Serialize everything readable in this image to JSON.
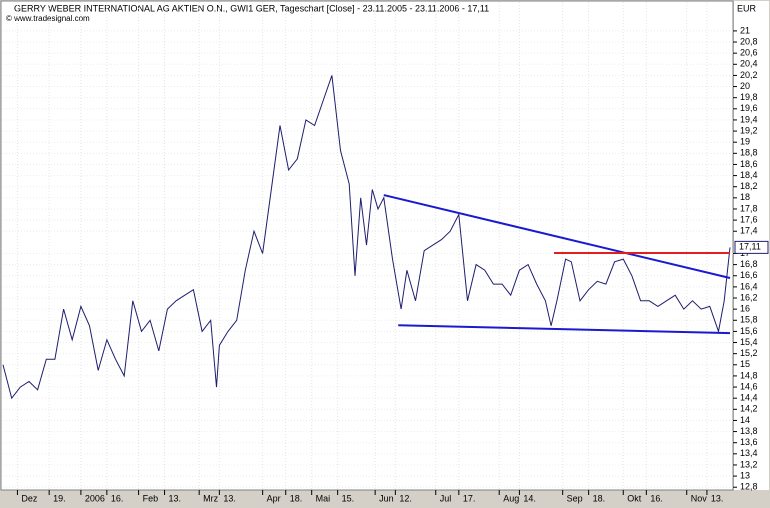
{
  "chart_data": {
    "type": "line",
    "title": "GERRY WEBER INTERNATIONAL AG AKTIEN O.N., GWI1 GER, Tageschart [Close] - 23.11.2005 - 23.11.2006 - 17,11",
    "source": "© www.tradesignal.com",
    "y_unit": "EUR",
    "last_value": 17.11,
    "last_value_label": "17,11",
    "xlim": [
      0,
      252
    ],
    "xticks": [
      {
        "value": 5,
        "label": "Dez"
      },
      {
        "value": 16,
        "label": "19."
      },
      {
        "value": 27,
        "label": "2006"
      },
      {
        "value": 36,
        "label": "16."
      },
      {
        "value": 47,
        "label": "Feb"
      },
      {
        "value": 56,
        "label": "13."
      },
      {
        "value": 68,
        "label": "Mrz"
      },
      {
        "value": 75,
        "label": "13."
      },
      {
        "value": 90,
        "label": "Apr"
      },
      {
        "value": 98,
        "label": "18."
      },
      {
        "value": 107,
        "label": "Mai"
      },
      {
        "value": 116,
        "label": "15."
      },
      {
        "value": 129,
        "label": "Jun"
      },
      {
        "value": 136,
        "label": "12."
      },
      {
        "value": 150,
        "label": "Jul"
      },
      {
        "value": 158,
        "label": "17."
      },
      {
        "value": 172,
        "label": "Aug"
      },
      {
        "value": 179,
        "label": "14."
      },
      {
        "value": 194,
        "label": "Sep"
      },
      {
        "value": 203,
        "label": "18."
      },
      {
        "value": 215,
        "label": "Okt"
      },
      {
        "value": 223,
        "label": "16."
      },
      {
        "value": 237,
        "label": "Nov"
      },
      {
        "value": 244,
        "label": "13."
      }
    ],
    "ylim": [
      12.75,
      21.16
    ],
    "yticks": [
      {
        "value": 12.8,
        "label": "12,8"
      },
      13,
      {
        "value": 13.2,
        "label": "13,2"
      },
      {
        "value": 13.4,
        "label": "13,4"
      },
      {
        "value": 13.6,
        "label": "13,6"
      },
      {
        "value": 13.8,
        "label": "13,8"
      },
      14,
      {
        "value": 14.2,
        "label": "14,2"
      },
      {
        "value": 14.4,
        "label": "14,4"
      },
      {
        "value": 14.6,
        "label": "14,6"
      },
      {
        "value": 14.8,
        "label": "14,8"
      },
      15,
      {
        "value": 15.2,
        "label": "15,2"
      },
      {
        "value": 15.4,
        "label": "15,4"
      },
      {
        "value": 15.6,
        "label": "15,6"
      },
      {
        "value": 15.8,
        "label": "15,8"
      },
      16,
      {
        "value": 16.2,
        "label": "16,2"
      },
      {
        "value": 16.4,
        "label": "16,4"
      },
      {
        "value": 16.6,
        "label": "16,6"
      },
      {
        "value": 16.8,
        "label": "16,8"
      },
      17,
      {
        "value": 17.4,
        "label": "17,4"
      },
      {
        "value": 17.6,
        "label": "17,6"
      },
      {
        "value": 17.8,
        "label": "17,8"
      },
      18,
      {
        "value": 18.2,
        "label": "18,2"
      },
      {
        "value": 18.4,
        "label": "18,4"
      },
      {
        "value": 18.6,
        "label": "18,6"
      },
      {
        "value": 18.8,
        "label": "18,8"
      },
      19,
      {
        "value": 19.2,
        "label": "19,2"
      },
      {
        "value": 19.4,
        "label": "19,4"
      },
      {
        "value": 19.6,
        "label": "19,6"
      },
      {
        "value": 19.8,
        "label": "19,8"
      },
      20,
      {
        "value": 20.2,
        "label": "20,2"
      },
      {
        "value": 20.4,
        "label": "20,4"
      },
      {
        "value": 20.6,
        "label": "20,6"
      },
      {
        "value": 20.8,
        "label": "20,8"
      },
      21
    ],
    "series": [
      {
        "color": "#1e1e6e",
        "x": [
          0,
          3,
          6,
          9,
          12,
          15,
          18,
          21,
          24,
          27,
          30,
          33,
          36,
          39,
          42,
          45,
          48,
          51,
          54,
          57,
          60,
          63,
          66,
          69,
          72,
          74,
          75,
          78,
          81,
          84,
          87,
          90,
          93,
          96,
          99,
          102,
          105,
          108,
          111,
          114,
          117,
          120,
          122,
          124,
          126,
          128,
          130,
          132,
          135,
          138,
          140,
          143,
          146,
          149,
          152,
          155,
          158,
          161,
          164,
          167,
          170,
          173,
          176,
          179,
          182,
          185,
          188,
          190,
          192,
          195,
          197,
          200,
          203,
          206,
          209,
          212,
          215,
          218,
          221,
          224,
          227,
          230,
          233,
          236,
          239,
          242,
          245,
          248,
          250,
          252
        ],
        "values": [
          15.0,
          14.4,
          14.6,
          14.7,
          14.55,
          15.1,
          15.1,
          16.0,
          15.45,
          16.05,
          15.7,
          14.9,
          15.45,
          15.1,
          14.8,
          16.15,
          15.6,
          15.8,
          15.25,
          16.0,
          16.15,
          16.25,
          16.35,
          15.6,
          15.8,
          14.6,
          15.35,
          15.6,
          15.8,
          16.7,
          17.4,
          17.0,
          18.15,
          19.3,
          18.5,
          18.7,
          19.4,
          19.3,
          19.75,
          20.2,
          18.85,
          18.25,
          16.6,
          18.0,
          17.15,
          18.15,
          17.8,
          18.0,
          16.9,
          16.0,
          16.7,
          16.15,
          17.05,
          17.15,
          17.25,
          17.4,
          17.7,
          16.15,
          16.8,
          16.7,
          16.45,
          16.45,
          16.25,
          16.7,
          16.8,
          16.45,
          16.15,
          15.7,
          16.15,
          16.9,
          16.85,
          16.15,
          16.35,
          16.5,
          16.45,
          16.85,
          16.9,
          16.6,
          16.15,
          16.15,
          16.05,
          16.15,
          16.25,
          16.0,
          16.15,
          16.0,
          16.05,
          15.6,
          16.15,
          17.11
        ]
      }
    ],
    "trend_lines": [
      {
        "color": "#1a1ad0",
        "x": [
          132,
          252
        ],
        "y": [
          18.05,
          16.56
        ]
      },
      {
        "color": "#1a1ad0",
        "x": [
          137,
          252
        ],
        "y": [
          15.71,
          15.57
        ]
      },
      {
        "color": "#e02020",
        "x": [
          191,
          252
        ],
        "y": [
          17.01,
          17.01
        ]
      }
    ]
  }
}
